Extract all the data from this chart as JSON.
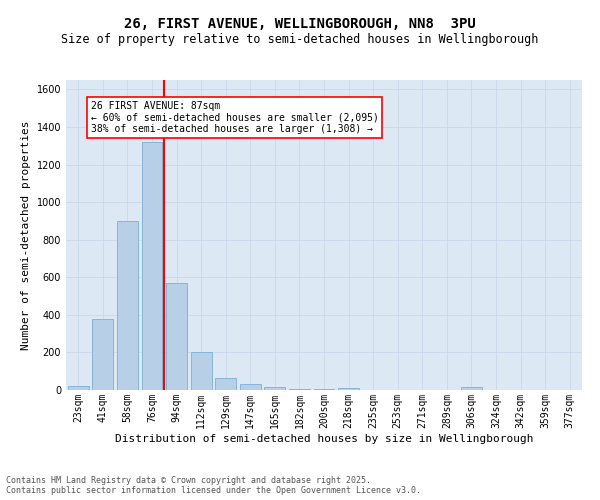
{
  "title": "26, FIRST AVENUE, WELLINGBOROUGH, NN8  3PU",
  "subtitle": "Size of property relative to semi-detached houses in Wellingborough",
  "xlabel": "Distribution of semi-detached houses by size in Wellingborough",
  "ylabel": "Number of semi-detached properties",
  "categories": [
    "23sqm",
    "41sqm",
    "58sqm",
    "76sqm",
    "94sqm",
    "112sqm",
    "129sqm",
    "147sqm",
    "165sqm",
    "182sqm",
    "200sqm",
    "218sqm",
    "235sqm",
    "253sqm",
    "271sqm",
    "289sqm",
    "306sqm",
    "324sqm",
    "342sqm",
    "359sqm",
    "377sqm"
  ],
  "values": [
    20,
    380,
    900,
    1320,
    570,
    200,
    65,
    30,
    18,
    5,
    5,
    12,
    0,
    0,
    0,
    0,
    15,
    0,
    0,
    0,
    0
  ],
  "bar_color": "#b8cfe8",
  "bar_edge_color": "#7aafd4",
  "red_line_index": 3,
  "annotation_line1": "26 FIRST AVENUE: 87sqm",
  "annotation_line2": "← 60% of semi-detached houses are smaller (2,095)",
  "annotation_line3": "38% of semi-detached houses are larger (1,308) →",
  "ylim": [
    0,
    1650
  ],
  "yticks": [
    0,
    200,
    400,
    600,
    800,
    1000,
    1200,
    1400,
    1600
  ],
  "grid_color": "#c8d4e8",
  "background_color": "#dde8f5",
  "footer_line1": "Contains HM Land Registry data © Crown copyright and database right 2025.",
  "footer_line2": "Contains public sector information licensed under the Open Government Licence v3.0.",
  "title_fontsize": 10,
  "subtitle_fontsize": 8.5,
  "axis_label_fontsize": 8,
  "tick_fontsize": 7,
  "annotation_fontsize": 7,
  "footer_fontsize": 6
}
